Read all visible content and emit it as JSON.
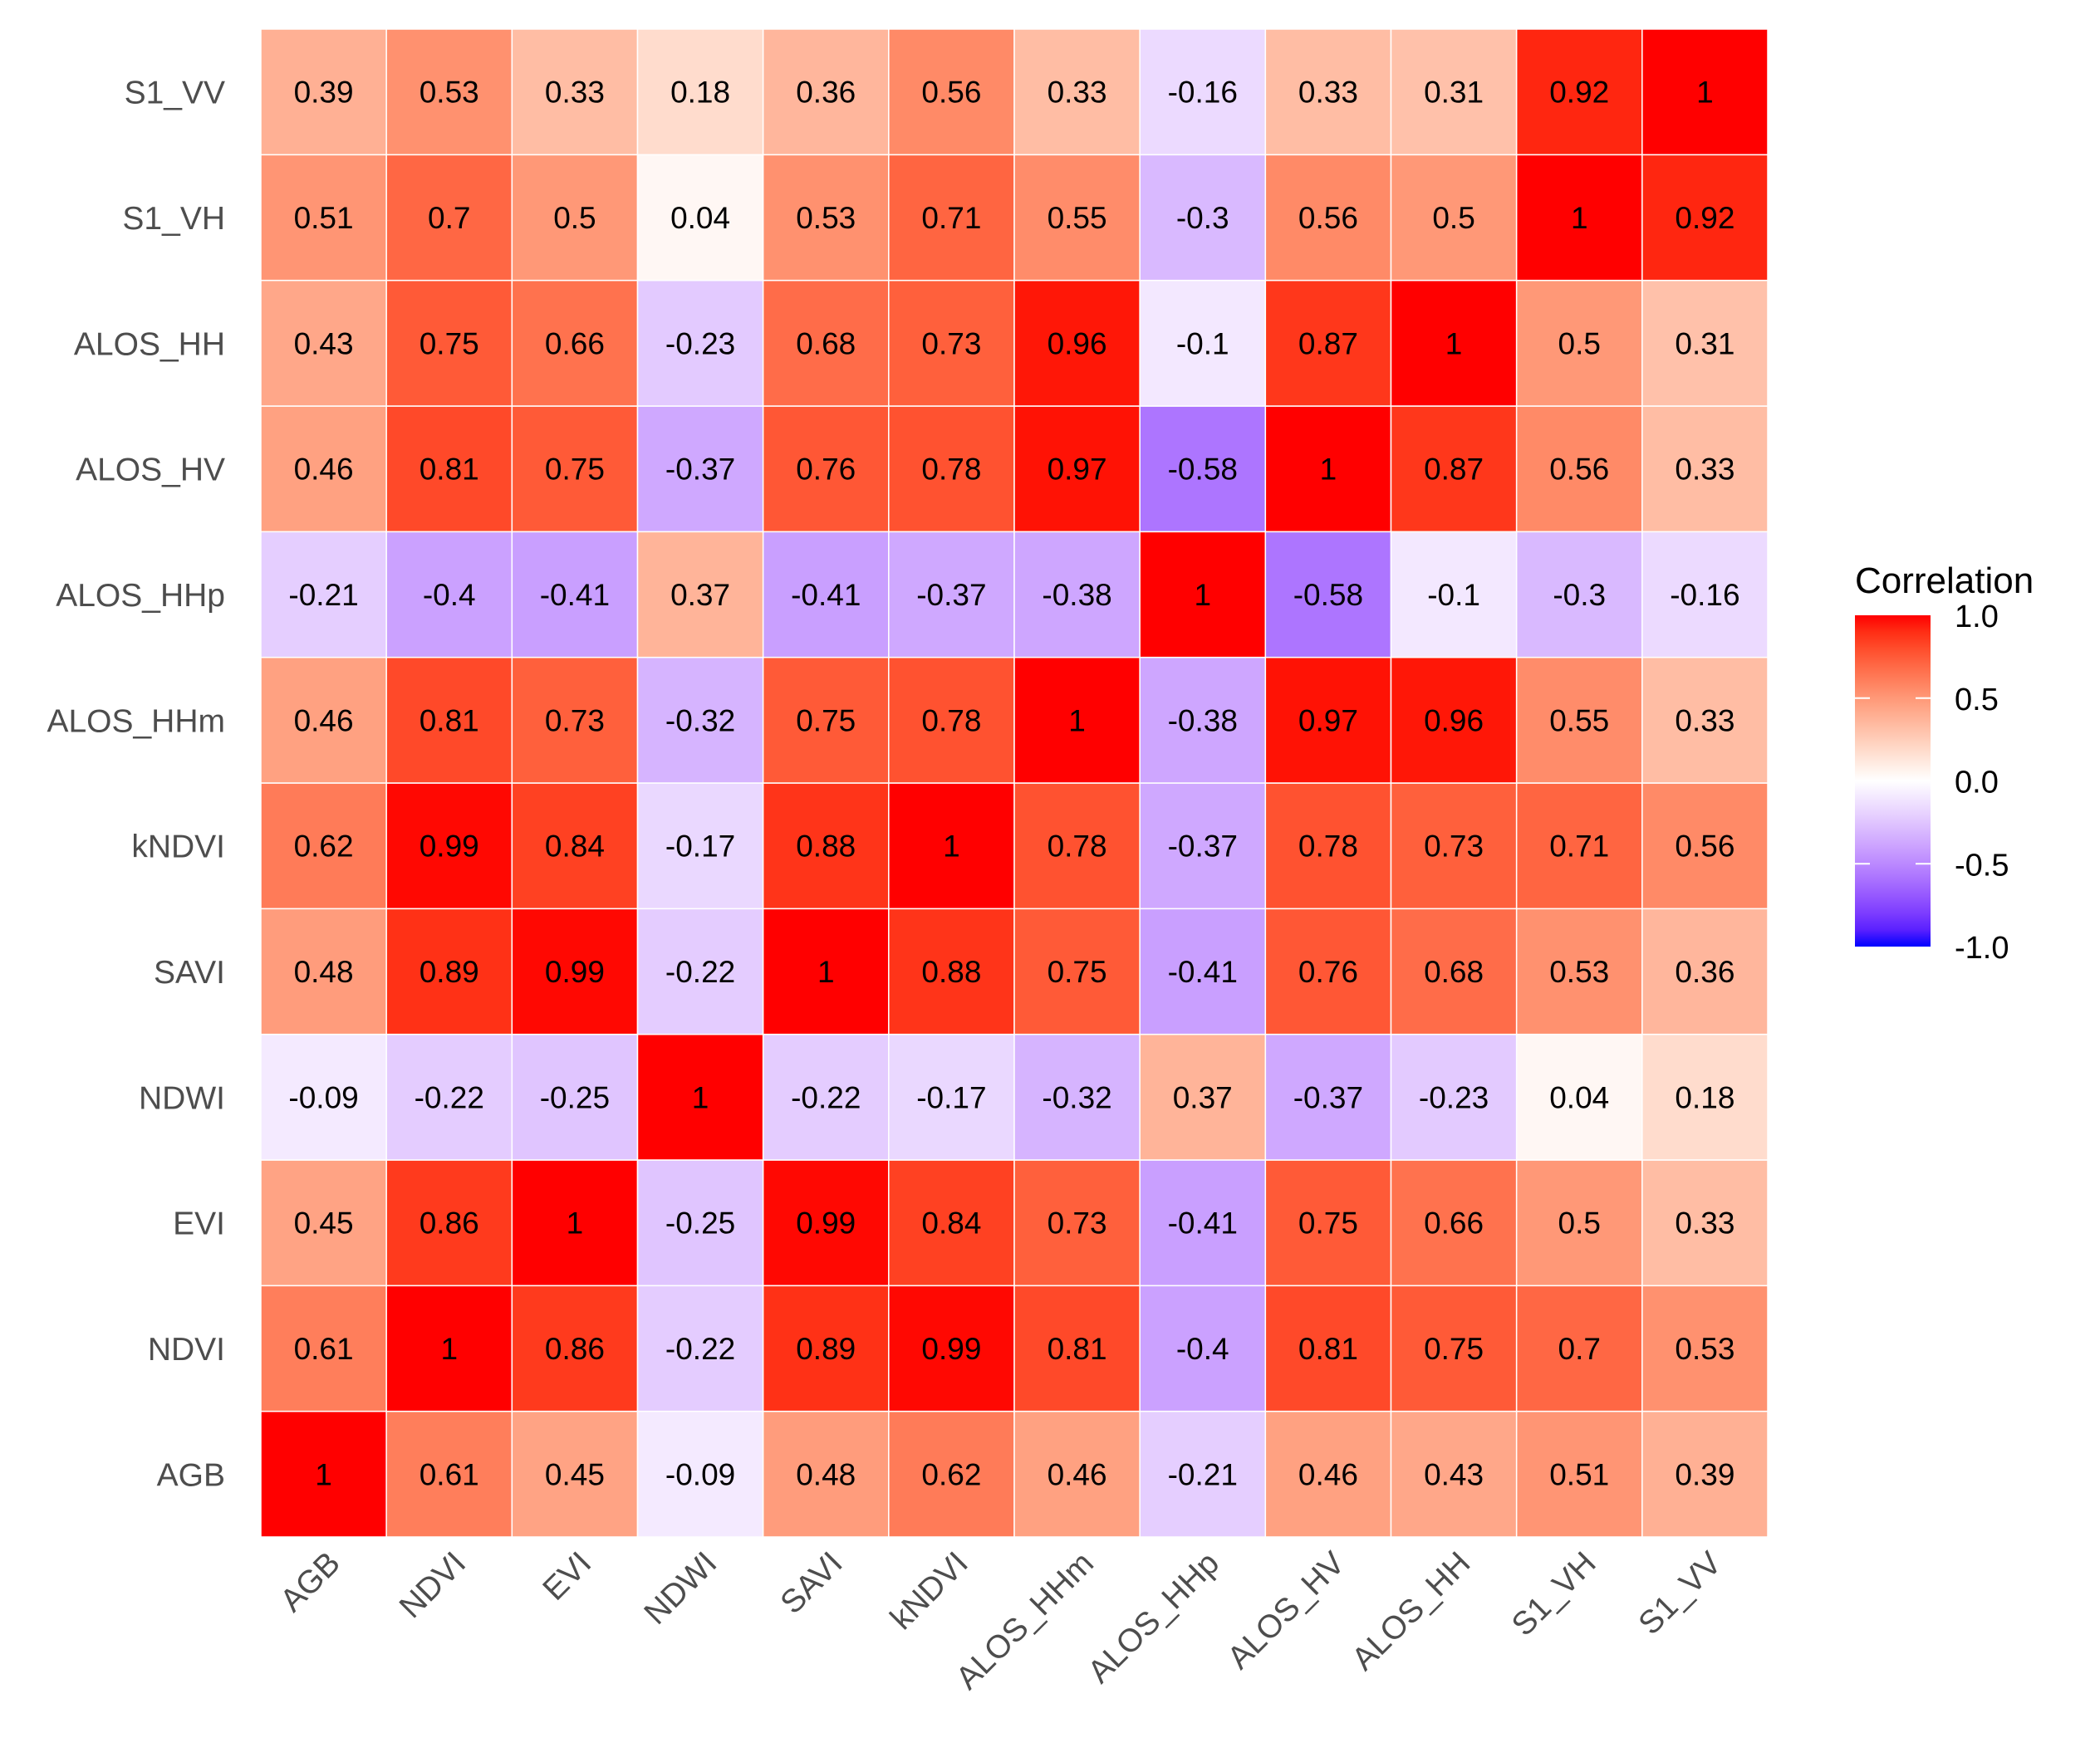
{
  "chart_data": {
    "type": "heatmap",
    "title": "",
    "xlabel": "",
    "ylabel": "",
    "variables": [
      "AGB",
      "NDVI",
      "EVI",
      "NDWI",
      "SAVI",
      "kNDVI",
      "ALOS_HHm",
      "ALOS_HHp",
      "ALOS_HV",
      "ALOS_HH",
      "S1_VH",
      "S1_VV"
    ],
    "matrix": [
      [
        1,
        0.61,
        0.45,
        -0.09,
        0.48,
        0.62,
        0.46,
        -0.21,
        0.46,
        0.43,
        0.51,
        0.39
      ],
      [
        0.61,
        1,
        0.86,
        -0.22,
        0.89,
        0.99,
        0.81,
        -0.4,
        0.81,
        0.75,
        0.7,
        0.53
      ],
      [
        0.45,
        0.86,
        1,
        -0.25,
        0.99,
        0.84,
        0.73,
        -0.41,
        0.75,
        0.66,
        0.5,
        0.33
      ],
      [
        -0.09,
        -0.22,
        -0.25,
        1,
        -0.22,
        -0.17,
        -0.32,
        0.37,
        -0.37,
        -0.23,
        0.04,
        0.18
      ],
      [
        0.48,
        0.89,
        0.99,
        -0.22,
        1,
        0.88,
        0.75,
        -0.41,
        0.76,
        0.68,
        0.53,
        0.36
      ],
      [
        0.62,
        0.99,
        0.84,
        -0.17,
        0.88,
        1,
        0.78,
        -0.37,
        0.78,
        0.73,
        0.71,
        0.56
      ],
      [
        0.46,
        0.81,
        0.73,
        -0.32,
        0.75,
        0.78,
        1,
        -0.38,
        0.97,
        0.96,
        0.55,
        0.33
      ],
      [
        -0.21,
        -0.4,
        -0.41,
        0.37,
        -0.41,
        -0.37,
        -0.38,
        1,
        -0.58,
        -0.1,
        -0.3,
        -0.16
      ],
      [
        0.46,
        0.81,
        0.75,
        -0.37,
        0.76,
        0.78,
        0.97,
        -0.58,
        1,
        0.87,
        0.56,
        0.33
      ],
      [
        0.43,
        0.75,
        0.66,
        -0.23,
        0.68,
        0.73,
        0.96,
        -0.1,
        0.87,
        1,
        0.5,
        0.31
      ],
      [
        0.51,
        0.7,
        0.5,
        0.04,
        0.53,
        0.71,
        0.55,
        -0.3,
        0.56,
        0.5,
        1,
        0.92
      ],
      [
        0.39,
        0.53,
        0.33,
        0.18,
        0.36,
        0.56,
        0.33,
        -0.16,
        0.33,
        0.31,
        0.92,
        1
      ]
    ],
    "color_scale": {
      "low": "#0000FF",
      "mid": "#FFFFFF",
      "high": "#FF0000",
      "limits": [
        -1,
        1
      ]
    },
    "legend": {
      "title": "Correlation",
      "ticks": [
        "1.0",
        "0.5",
        "0.0",
        "-0.5",
        "-1.0"
      ],
      "tick_values": [
        1,
        0.5,
        0,
        -0.5,
        -1
      ],
      "placement": "right"
    }
  }
}
